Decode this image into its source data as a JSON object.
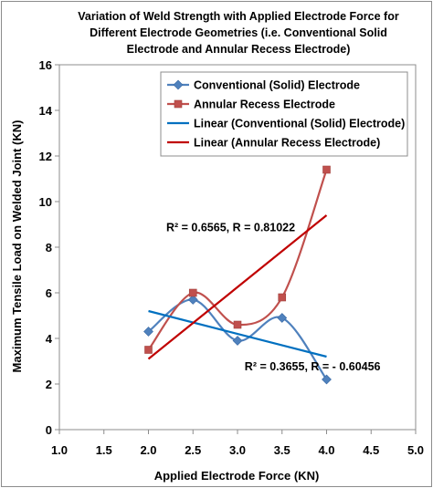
{
  "chart_data": {
    "type": "line",
    "title": [
      "Variation of Weld Strength with Applied Electrode Force for",
      "Different Electrode Geometries (i.e. Conventional Solid",
      "Electrode and Annular Recess Electrode)"
    ],
    "xlabel": "Applied Electrode Force (KN)",
    "ylabel": "Maximum Tensile Load on Welded Joint (KN)",
    "xlim": [
      1.0,
      5.0
    ],
    "ylim": [
      0,
      16
    ],
    "x_ticks": [
      "1.0",
      "1.5",
      "2.0",
      "2.5",
      "3.0",
      "3.5",
      "4.0",
      "4.5",
      "5.0"
    ],
    "y_ticks": [
      "0",
      "2",
      "4",
      "6",
      "8",
      "10",
      "12",
      "14",
      "16"
    ],
    "grid": false,
    "legend_position": "top-right",
    "series": [
      {
        "name": "Conventional (Solid) Electrode",
        "style": "smoothed-line-with-diamond-markers",
        "color": "#4f81bd",
        "x": [
          2.0,
          2.5,
          3.0,
          3.5,
          4.0
        ],
        "y": [
          4.3,
          5.7,
          3.9,
          4.9,
          2.2
        ]
      },
      {
        "name": "Annular Recess Electrode",
        "style": "smoothed-line-with-square-markers",
        "color": "#c0504d",
        "x": [
          2.0,
          2.5,
          3.0,
          3.5,
          4.0
        ],
        "y": [
          3.5,
          6.0,
          4.6,
          5.8,
          11.4
        ]
      },
      {
        "name": "Linear (Conventional (Solid) Electrode)",
        "style": "trendline",
        "color": "#0070c0",
        "x": [
          2.0,
          4.0
        ],
        "y": [
          5.2,
          3.2
        ]
      },
      {
        "name": "Linear (Annular Recess Electrode)",
        "style": "trendline",
        "color": "#c00000",
        "x": [
          2.0,
          4.0
        ],
        "y": [
          3.1,
          9.4
        ]
      }
    ],
    "annotations": [
      {
        "text": "R² = 0.6565, R = 0.81022",
        "x": 2.2,
        "y": 8.7
      },
      {
        "text": "R² = 0.3655,   R = - 0.60456",
        "x": 3.08,
        "y": 2.6
      }
    ]
  }
}
